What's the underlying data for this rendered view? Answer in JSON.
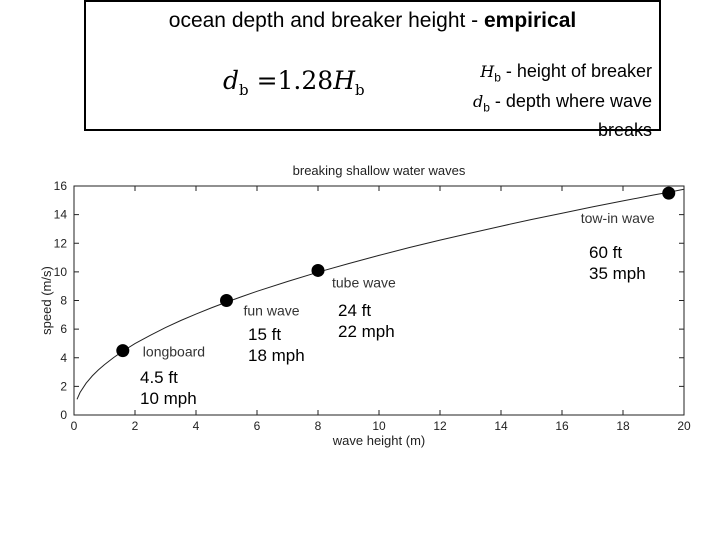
{
  "header": {
    "title_plain": "ocean depth and breaker height - ",
    "title_bold": "empirical",
    "formula": {
      "lhs": "d",
      "lhs_sub": "b",
      "equals": " =1.28",
      "rhs": "H",
      "rhs_sub": "b"
    },
    "legend": [
      {
        "symbol": "H",
        "sub": "b",
        "text": " - height of breaker"
      },
      {
        "symbol": "d",
        "sub": "b",
        "text": " - depth where wave breaks"
      }
    ]
  },
  "chart_data": {
    "type": "line",
    "title": "breaking shallow water waves",
    "xlabel": "wave height (m)",
    "ylabel": "speed (m/s)",
    "xlim": [
      0,
      20
    ],
    "ylim": [
      0,
      16
    ],
    "xticks": [
      0,
      2,
      4,
      6,
      8,
      10,
      12,
      14,
      16,
      18,
      20
    ],
    "yticks": [
      0,
      2,
      4,
      6,
      8,
      10,
      12,
      14,
      16
    ],
    "grid": false,
    "series": [
      {
        "x": [
          0.1,
          0.2,
          0.4,
          0.6,
          0.8,
          1.0,
          1.3,
          1.6,
          2.0,
          2.5,
          3.0,
          3.5,
          4.0,
          4.5,
          5.0,
          5.5,
          6.0,
          7.0,
          8.0,
          9.0,
          10.0,
          11.0,
          12.0,
          13.0,
          14.0,
          15.0,
          16.0,
          17.0,
          18.0,
          19.0,
          19.5,
          20.0
        ],
        "y": [
          1.1,
          1.58,
          2.23,
          2.73,
          3.15,
          3.52,
          4.02,
          4.46,
          4.99,
          5.57,
          6.11,
          6.6,
          7.05,
          7.48,
          7.89,
          8.27,
          8.64,
          9.33,
          9.98,
          10.58,
          11.15,
          11.7,
          12.22,
          12.71,
          13.19,
          13.66,
          14.1,
          14.54,
          14.96,
          15.37,
          15.57,
          15.77
        ]
      }
    ],
    "points": [
      {
        "label": "longboard",
        "x": 1.6,
        "y": 4.5
      },
      {
        "label": "fun wave",
        "x": 5.0,
        "y": 8.0
      },
      {
        "label": "tube wave",
        "x": 8.0,
        "y": 10.1
      },
      {
        "label": "tow-in wave",
        "x": 19.5,
        "y": 15.5
      }
    ]
  },
  "annotations": [
    {
      "line1": "4.5 ft",
      "line2": "10 mph"
    },
    {
      "line1": "15 ft",
      "line2": "18 mph"
    },
    {
      "line1": "24 ft",
      "line2": "22 mph"
    },
    {
      "line1": "60 ft",
      "line2": "35 mph"
    }
  ]
}
